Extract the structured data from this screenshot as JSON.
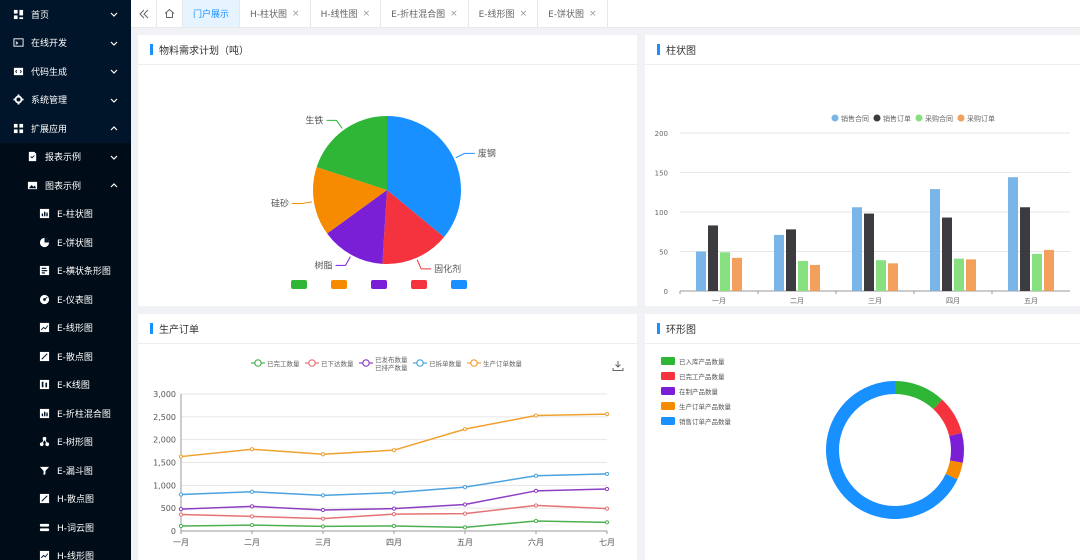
{
  "sidebar": {
    "items": [
      {
        "label": "首页",
        "icon": "dashboard-icon",
        "level": 1,
        "chevron": "down"
      },
      {
        "label": "在线开发",
        "icon": "code-window-icon",
        "level": 1,
        "chevron": "down"
      },
      {
        "label": "代码生成",
        "icon": "code-tag-icon",
        "level": 1,
        "chevron": "down"
      },
      {
        "label": "系统管理",
        "icon": "gear-icon",
        "level": 1,
        "chevron": "down"
      },
      {
        "label": "扩展应用",
        "icon": "apps-grid-icon",
        "level": 1,
        "chevron": "up"
      },
      {
        "label": "报表示例",
        "icon": "report-icon",
        "level": 2,
        "chevron": "down"
      },
      {
        "label": "图表示例",
        "icon": "image-icon",
        "level": 2,
        "chevron": "up"
      },
      {
        "label": "E-柱状图",
        "icon": "bar-chart-icon",
        "level": 3
      },
      {
        "label": "E-饼状图",
        "icon": "pie-chart-icon",
        "level": 3
      },
      {
        "label": "E-横状条形图",
        "icon": "hbar-chart-icon",
        "level": 3
      },
      {
        "label": "E-仪表图",
        "icon": "gauge-icon",
        "level": 3
      },
      {
        "label": "E-线形图",
        "icon": "line-chart-icon",
        "level": 3
      },
      {
        "label": "E-散点图",
        "icon": "scatter-chart-icon",
        "level": 3
      },
      {
        "label": "E-K线图",
        "icon": "candlestick-icon",
        "level": 3
      },
      {
        "label": "E-折柱混合图",
        "icon": "mixed-chart-icon",
        "level": 3
      },
      {
        "label": "E-树形图",
        "icon": "tree-icon",
        "level": 3
      },
      {
        "label": "E-漏斗图",
        "icon": "funnel-icon",
        "level": 3
      },
      {
        "label": "H-散点图",
        "icon": "scatter-chart-icon",
        "level": 3
      },
      {
        "label": "H-词云图",
        "icon": "cloud-icon",
        "level": 3
      },
      {
        "label": "H-线形图",
        "icon": "line-chart-icon",
        "level": 3
      }
    ]
  },
  "tabs": {
    "items": [
      {
        "label": "门户展示",
        "active": true,
        "closable": false
      },
      {
        "label": "H-柱状图",
        "active": false,
        "closable": true
      },
      {
        "label": "H-线性图",
        "active": false,
        "closable": true
      },
      {
        "label": "E-折柱混合图",
        "active": false,
        "closable": true
      },
      {
        "label": "E-线形图",
        "active": false,
        "closable": true
      },
      {
        "label": "E-饼状图",
        "active": false,
        "closable": true
      }
    ],
    "close_glyph": "×",
    "collapse_icon": "double-chevron-left-icon",
    "home_icon": "home-icon"
  },
  "cards": {
    "pie": {
      "title": "物料需求计划（吨）"
    },
    "bar": {
      "title": "柱状图"
    },
    "line": {
      "title": "生产订单"
    },
    "ring": {
      "title": "环形图"
    }
  },
  "chart_data": [
    {
      "type": "pie",
      "title": "",
      "slices": [
        {
          "label": "废钢",
          "value": 36,
          "color": "#1890ff"
        },
        {
          "label": "固化剂",
          "value": 15,
          "color": "#f5333f"
        },
        {
          "label": "树脂",
          "value": 14,
          "color": "#7b1fd6"
        },
        {
          "label": "硅砂",
          "value": 15,
          "color": "#f78b00"
        },
        {
          "label": "生铁",
          "value": 20,
          "color": "#2fb636"
        }
      ],
      "legend": {
        "placement": "bottom",
        "labels_visible": false
      },
      "legend_order_colors": [
        "#2fb636",
        "#f78b00",
        "#7b1fd6",
        "#f5333f",
        "#1890ff"
      ]
    },
    {
      "type": "bar",
      "categories": [
        "一月",
        "二月",
        "三月",
        "四月",
        "五月"
      ],
      "series": [
        {
          "name": "销售合同",
          "values": [
            50,
            71,
            106,
            129,
            144
          ],
          "color": "#79b5e6"
        },
        {
          "name": "销售订单",
          "values": [
            83,
            78,
            98,
            93,
            106
          ],
          "color": "#3b3b40"
        },
        {
          "name": "采购合同",
          "values": [
            49,
            38,
            39,
            41,
            47
          ],
          "color": "#86e07f"
        },
        {
          "name": "采购订单",
          "values": [
            42,
            33,
            35,
            40,
            52
          ],
          "color": "#f2a05c"
        }
      ],
      "ylim": [
        0,
        200
      ],
      "yticks": [
        0,
        50,
        100,
        150,
        200
      ],
      "grid": true,
      "legend": "top"
    },
    {
      "type": "line",
      "categories": [
        "一月",
        "二月",
        "三月",
        "四月",
        "五月",
        "六月",
        "七月"
      ],
      "series": [
        {
          "name": "已完工数量",
          "values": [
            110,
            130,
            100,
            110,
            80,
            220,
            190
          ],
          "color": "#4caf50"
        },
        {
          "name": "已下达数量",
          "values": [
            360,
            320,
            270,
            370,
            380,
            560,
            490
          ],
          "color": "#e57373"
        },
        {
          "name": "已发布数量\n已排产数量",
          "values": [
            480,
            540,
            460,
            490,
            580,
            880,
            920
          ],
          "color": "#8e3ec4"
        },
        {
          "name": "已拆单数量",
          "values": [
            800,
            860,
            780,
            840,
            960,
            1210,
            1250
          ],
          "color": "#4aa3df"
        },
        {
          "name": "生产订单数量",
          "values": [
            1630,
            1790,
            1680,
            1770,
            2230,
            2530,
            2560
          ],
          "color": "#f0a02e"
        }
      ],
      "ylim": [
        0,
        3000
      ],
      "yticks": [
        "0",
        "500",
        "1,000",
        "1,500",
        "2,000",
        "2,500",
        "3,000"
      ],
      "grid": true,
      "legend": "top",
      "download_icon": "download-icon"
    },
    {
      "type": "pie",
      "donut": true,
      "slices": [
        {
          "label": "已入库产品数量",
          "value": 12,
          "color": "#2fb636"
        },
        {
          "label": "已完工产品数量",
          "value": 9,
          "color": "#f5333f"
        },
        {
          "label": "在制产品数量",
          "value": 7,
          "color": "#7b1fd6"
        },
        {
          "label": "生产订单产品数量",
          "value": 4,
          "color": "#f78b00"
        },
        {
          "label": "销售订单产品数量",
          "value": 68,
          "color": "#1890ff"
        }
      ],
      "legend": "top-left"
    }
  ]
}
